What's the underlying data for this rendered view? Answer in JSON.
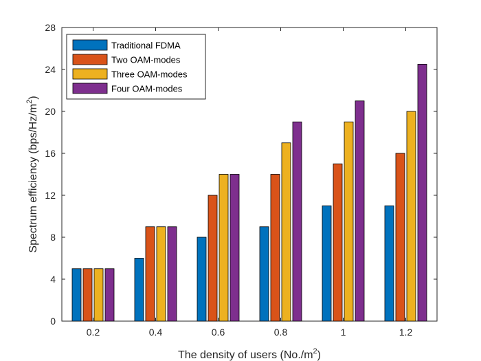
{
  "chart_data": {
    "type": "bar",
    "title": "",
    "xlabel": "The density of users (No./m",
    "xlabel_sup": "2",
    "xlabel_end": ")",
    "ylabel": "Spectrum efficiency (bps/Hz/m",
    "ylabel_sup": "2",
    "ylabel_end": ")",
    "categories": [
      "0.2",
      "0.4",
      "0.6",
      "0.8",
      "1",
      "1.2"
    ],
    "ylim": [
      0,
      28
    ],
    "yticks": [
      "0",
      "4",
      "8",
      "12",
      "16",
      "20",
      "24",
      "28"
    ],
    "grid": false,
    "legend_position": "top-left",
    "series": [
      {
        "name": "Traditional FDMA",
        "color": "#0072BD",
        "values": [
          5,
          6,
          8,
          9,
          11,
          11
        ]
      },
      {
        "name": "Two OAM-modes",
        "color": "#D95319",
        "values": [
          5,
          9,
          12,
          14,
          15,
          16
        ]
      },
      {
        "name": "Three OAM-modes",
        "color": "#EDB120",
        "values": [
          5,
          9,
          14,
          17,
          19,
          20
        ]
      },
      {
        "name": "Four OAM-modes",
        "color": "#7E2F8E",
        "values": [
          5,
          9,
          14,
          19,
          21,
          24.5
        ]
      }
    ]
  }
}
